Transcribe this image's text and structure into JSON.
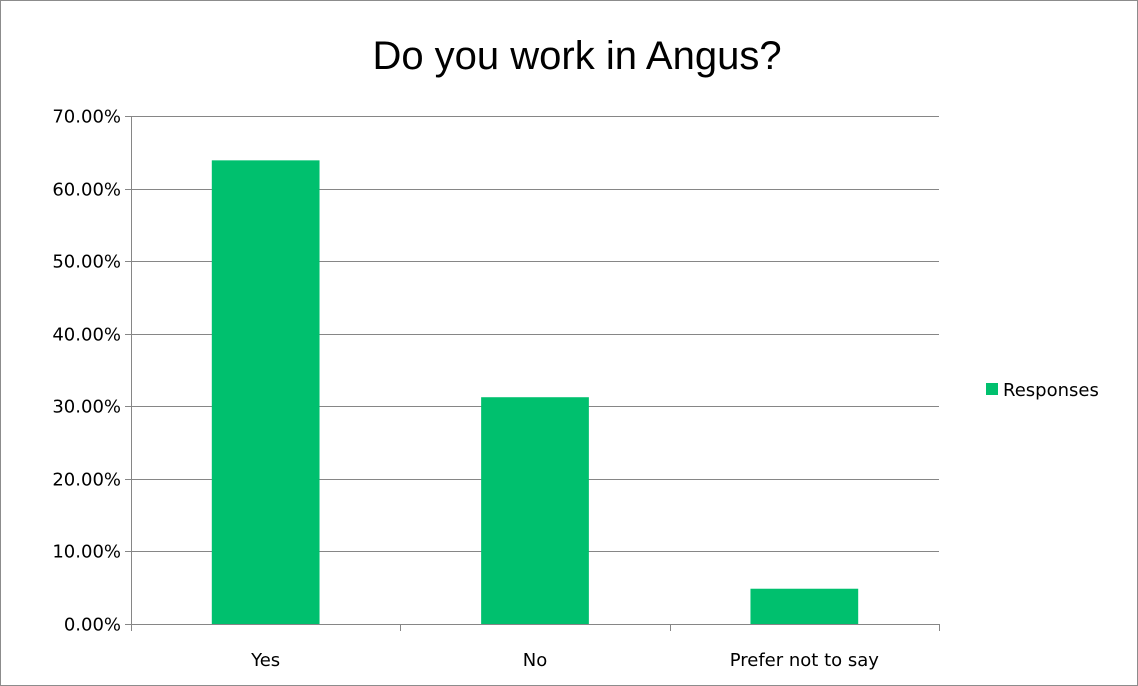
{
  "chart_data": {
    "type": "bar",
    "title": "Do you work in Angus?",
    "categories": [
      "Yes",
      "No",
      "Prefer not to say"
    ],
    "series": [
      {
        "name": "Responses",
        "values": [
          0.6389,
          0.3125,
          0.0486
        ],
        "color": "#00c06e"
      }
    ],
    "ylim": [
      0,
      0.7
    ],
    "y_ticks": [
      0,
      0.1,
      0.2,
      0.3,
      0.4,
      0.5,
      0.6,
      0.7
    ],
    "y_tick_labels": [
      "0.00%",
      "10.00%",
      "20.00%",
      "30.00%",
      "40.00%",
      "50.00%",
      "60.00%",
      "70.00%"
    ],
    "grid": true,
    "legend": {
      "position": "right",
      "label": "Responses"
    }
  }
}
